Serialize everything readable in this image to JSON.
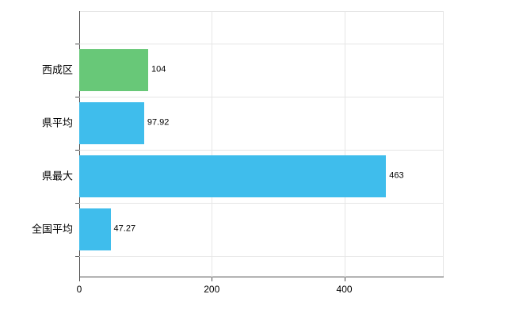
{
  "chart_data": {
    "type": "bar",
    "orientation": "horizontal",
    "title": "",
    "xlabel": "",
    "ylabel": "",
    "categories": [
      "西成区",
      "県平均",
      "県最大",
      "全国平均"
    ],
    "values": [
      104,
      97.92,
      463,
      47.27
    ],
    "value_labels": [
      "104",
      "97.92",
      "463",
      "47.27"
    ],
    "bar_colors": [
      "#68c878",
      "#3fbdec",
      "#3fbdec",
      "#3fbdec"
    ],
    "xlim": [
      0,
      550
    ],
    "xticks": [
      0,
      200,
      400
    ],
    "xtick_labels": [
      "0",
      "200",
      "400"
    ],
    "grid": true,
    "legend": false,
    "background": "#ffffff",
    "axis_color": "#4d4d4d",
    "grid_color": "#e6e6e6",
    "text_color": "#000000"
  }
}
